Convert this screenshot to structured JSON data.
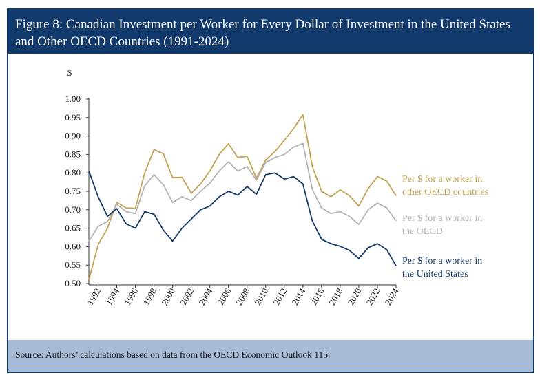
{
  "title": "Figure 8: Canadian Investment per Worker for Every Dollar of Investment in the United States and Other OECD Countries (1991-2024)",
  "source": "Source: Authors’ calculations based on data from the OECD Economic Outlook 115.",
  "chart_data": {
    "type": "line",
    "ylabel": "$",
    "ylim": [
      0.5,
      1.0
    ],
    "yticks": [
      "1.00",
      "0.95",
      "0.90",
      "0.85",
      "0.80",
      "0.75",
      "0.70",
      "0.65",
      "0.60",
      "0.55",
      "0.50"
    ],
    "xlim": [
      1991,
      2024
    ],
    "xticks": [
      "1992",
      "1994",
      "1996",
      "1998",
      "2000",
      "2002",
      "2004",
      "2006",
      "2008",
      "2010",
      "2012",
      "2014",
      "2016",
      "2018",
      "2020",
      "2022",
      "2024"
    ],
    "grid": false,
    "x": [
      1991,
      1992,
      1993,
      1994,
      1995,
      1996,
      1997,
      1998,
      1999,
      2000,
      2001,
      2002,
      2003,
      2004,
      2005,
      2006,
      2007,
      2008,
      2009,
      2010,
      2011,
      2012,
      2013,
      2014,
      2015,
      2016,
      2017,
      2018,
      2019,
      2020,
      2021,
      2022,
      2023,
      2024
    ],
    "series": [
      {
        "name": "Per $ for a worker in other OECD countries",
        "label_lines": [
          "Per $ for a worker in",
          "other OECD countries"
        ],
        "color": "#c4a253",
        "values": [
          0.51,
          0.605,
          0.65,
          0.72,
          0.705,
          0.704,
          0.8,
          0.863,
          0.852,
          0.787,
          0.788,
          0.745,
          0.77,
          0.805,
          0.85,
          0.879,
          0.842,
          0.845,
          0.785,
          0.835,
          0.858,
          0.888,
          0.92,
          0.958,
          0.818,
          0.75,
          0.735,
          0.754,
          0.738,
          0.71,
          0.757,
          0.79,
          0.778,
          0.738
        ]
      },
      {
        "name": "Per $ for a worker in the OECD",
        "label_lines": [
          "Per $ for a worker in",
          "the OECD"
        ],
        "color": "#b3b3b3",
        "values": [
          0.615,
          0.655,
          0.668,
          0.715,
          0.695,
          0.69,
          0.765,
          0.795,
          0.768,
          0.72,
          0.735,
          0.725,
          0.75,
          0.772,
          0.805,
          0.83,
          0.805,
          0.817,
          0.78,
          0.828,
          0.842,
          0.85,
          0.87,
          0.88,
          0.755,
          0.705,
          0.69,
          0.695,
          0.682,
          0.66,
          0.7,
          0.718,
          0.705,
          0.67
        ]
      },
      {
        "name": "Per $ for a worker in the United States",
        "label_lines": [
          "Per $ for a worker in",
          "the United States"
        ],
        "color": "#12396b",
        "values": [
          0.805,
          0.735,
          0.682,
          0.703,
          0.662,
          0.65,
          0.695,
          0.688,
          0.645,
          0.615,
          0.65,
          0.675,
          0.7,
          0.71,
          0.735,
          0.75,
          0.74,
          0.763,
          0.742,
          0.795,
          0.8,
          0.783,
          0.79,
          0.77,
          0.67,
          0.62,
          0.608,
          0.601,
          0.59,
          0.568,
          0.597,
          0.608,
          0.592,
          0.548
        ]
      }
    ]
  }
}
